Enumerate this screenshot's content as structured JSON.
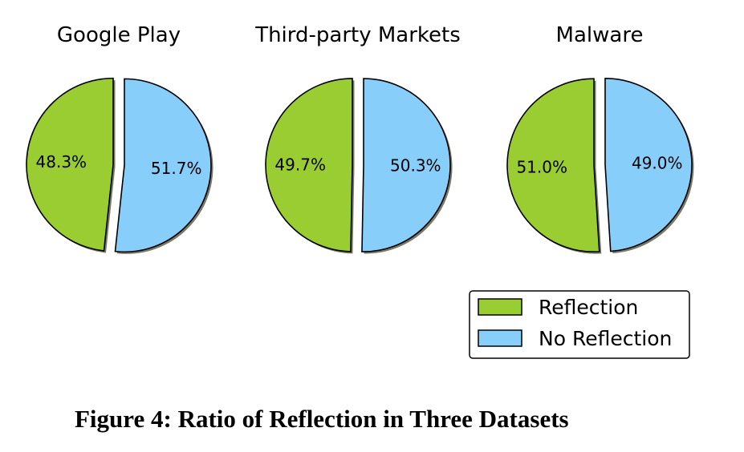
{
  "caption": "Figure 4: Ratio of Reflection in Three Datasets",
  "chart_data": [
    {
      "type": "pie",
      "title": "Google Play",
      "labels": [
        "Reflection",
        "No Reflection"
      ],
      "values": [
        48.3,
        51.7
      ],
      "value_labels": [
        "48.3%",
        "51.7%"
      ],
      "colors": [
        "#9acd32",
        "#87cefa"
      ],
      "exploded": true,
      "legend": "bottom-right"
    },
    {
      "type": "pie",
      "title": "Third-party Markets",
      "labels": [
        "Reflection",
        "No Reflection"
      ],
      "values": [
        49.7,
        50.3
      ],
      "value_labels": [
        "49.7%",
        "50.3%"
      ],
      "colors": [
        "#9acd32",
        "#87cefa"
      ],
      "exploded": true,
      "legend": "bottom-right"
    },
    {
      "type": "pie",
      "title": "Malware",
      "labels": [
        "Reflection",
        "No Reflection"
      ],
      "values": [
        51.0,
        49.0
      ],
      "value_labels": [
        "51.0%",
        "49.0%"
      ],
      "colors": [
        "#9acd32",
        "#87cefa"
      ],
      "exploded": true,
      "legend": "bottom-right"
    }
  ],
  "legend": {
    "items": [
      {
        "label": "Reflection",
        "color": "#9acd32"
      },
      {
        "label": "No Reflection",
        "color": "#87cefa"
      }
    ]
  }
}
